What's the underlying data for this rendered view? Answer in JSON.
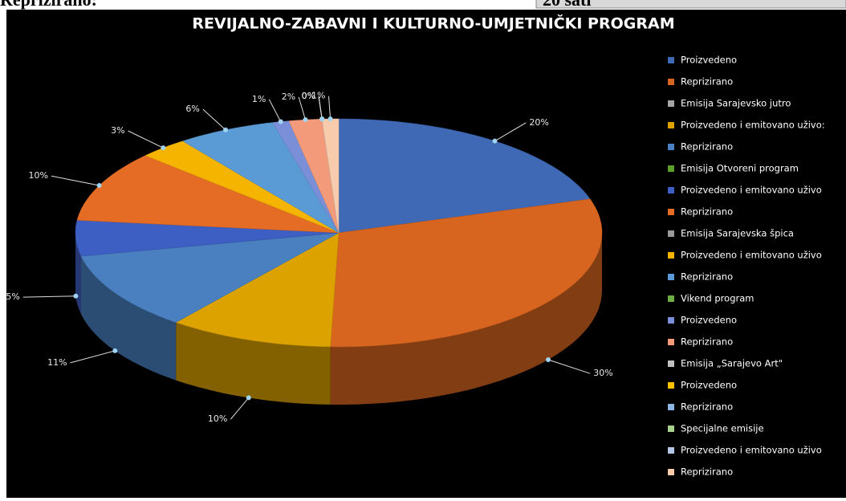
{
  "header": {
    "left": "Reprizirano:",
    "right": "20 sati"
  },
  "chart_data": {
    "type": "pie3d",
    "title": "REVIJALNO-ZABAVNI I KULTURNO-UMJETNIČKI PROGRAM",
    "categories": [
      "Proizvedeno",
      "Reprizirano",
      "Emisija Sarajevsko jutro",
      "Proizvedeno i emitovano uživo:",
      "Reprizirano",
      "Emisija Otvoreni program",
      "Proizvedeno i emitovano  uživo",
      "Reprizirano",
      "Emisija Sarajevska špica",
      "Proizvedeno i emitovano  uživo",
      "Reprizirano",
      "Vikend program",
      "Proizvedeno",
      "Reprizirano",
      "Emisija „Sarajevo Art\"",
      "Proizvedeno",
      "Reprizirano",
      "Specijalne emisije",
      "Proizvedeno i emitovano  uživo",
      "Reprizirano"
    ],
    "values": [
      20,
      30,
      null,
      10,
      11,
      null,
      5,
      10,
      null,
      3,
      6,
      null,
      1,
      2,
      null,
      0,
      0,
      null,
      0,
      1
    ],
    "value_labels": [
      "20%",
      "30%",
      null,
      "10%",
      "11%",
      null,
      "5%",
      "10%",
      null,
      "3%",
      "6%",
      null,
      "1%",
      "2%",
      null,
      "0%",
      "0%",
      null,
      "0%",
      "1%"
    ],
    "colors": [
      "#3f68b5",
      "#d8651f",
      "#a5a5a5",
      "#dca200",
      "#4a80c0",
      "#5aa02c",
      "#3d5ec2",
      "#e46c24",
      "#9a9a9a",
      "#f5b400",
      "#5b9bd5",
      "#70ad47",
      "#7a8fd8",
      "#f29a7a",
      "#c0c0c0",
      "#ffc000",
      "#8db4e2",
      "#a9d18e",
      "#b4c7e7",
      "#f8cbad"
    ],
    "legend": "right"
  }
}
